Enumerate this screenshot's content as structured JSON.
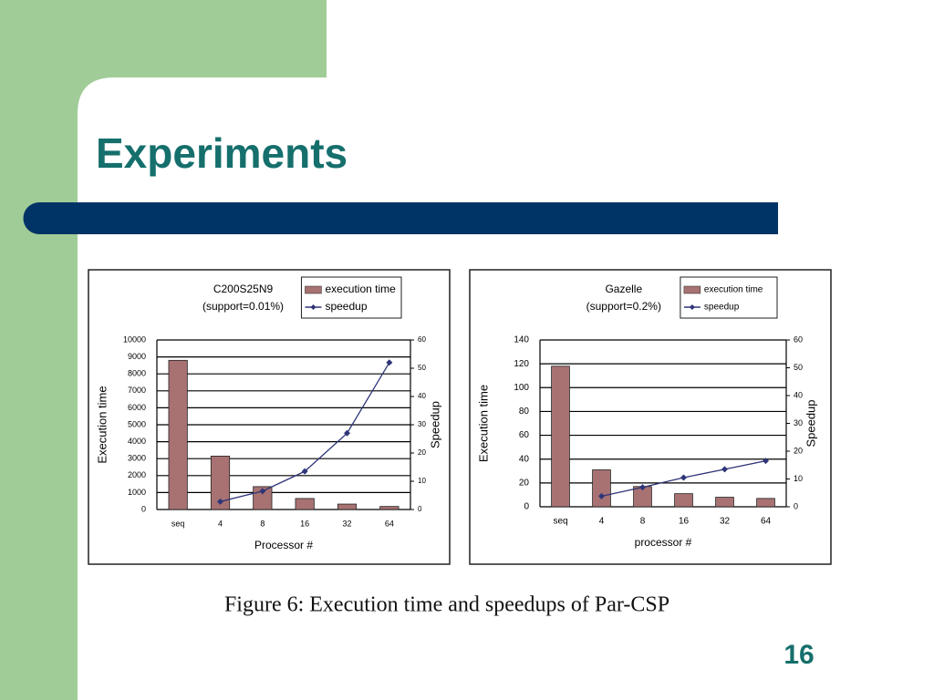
{
  "slide_title": "Experiments",
  "caption": "Figure 6: Execution time and speedups of Par-CSP",
  "page_number": "16",
  "chart_data": [
    {
      "type": "bar",
      "title": "C200S25N9",
      "subtitle": "(support=0.01%)",
      "categories": [
        "seq",
        "4",
        "8",
        "16",
        "32",
        "64"
      ],
      "series": [
        {
          "name": "execution time",
          "color": "#a87272",
          "values": [
            8800,
            3150,
            1350,
            650,
            320,
            180
          ]
        },
        {
          "name": "speedup",
          "type": "line",
          "axis": "y2",
          "color": "#2e3578",
          "values": [
            null,
            2.8,
            6.5,
            13.5,
            27,
            52
          ]
        }
      ],
      "ylim": [
        0,
        10000
      ],
      "yticks": [
        0,
        1000,
        2000,
        3000,
        4000,
        5000,
        6000,
        7000,
        8000,
        9000,
        10000
      ],
      "y2lim": [
        0,
        60
      ],
      "y2ticks": [
        0,
        10,
        20,
        30,
        40,
        50,
        60
      ],
      "xlabel": "Processor #",
      "ylabel": "Execution time",
      "y2label": "Speedup",
      "grid": true
    },
    {
      "type": "bar",
      "title": "Gazelle",
      "subtitle": "(support=0.2%)",
      "categories": [
        "seq",
        "4",
        "8",
        "16",
        "32",
        "64"
      ],
      "series": [
        {
          "name": "execution time",
          "color": "#a87272",
          "values": [
            118,
            31,
            17,
            11,
            8,
            7
          ]
        },
        {
          "name": "speedup",
          "type": "line",
          "axis": "y2",
          "color": "#2e3578",
          "values": [
            null,
            3.8,
            7,
            10.5,
            13.5,
            16.5
          ]
        }
      ],
      "ylim": [
        0,
        140
      ],
      "yticks": [
        0,
        20,
        40,
        60,
        80,
        100,
        120,
        140
      ],
      "y2lim": [
        0,
        60
      ],
      "y2ticks": [
        0,
        10,
        20,
        30,
        40,
        50,
        60
      ],
      "xlabel": "processor #",
      "ylabel": "Execution time",
      "y2label": "Speedup",
      "grid": true
    }
  ]
}
